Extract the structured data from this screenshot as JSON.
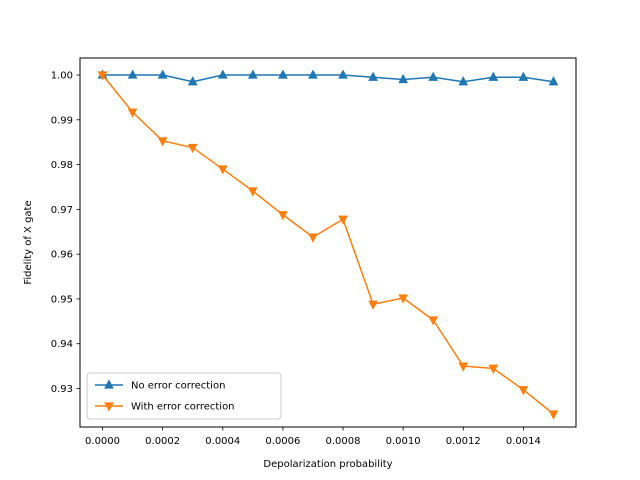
{
  "chart_data": {
    "type": "line",
    "title": "",
    "xlabel": "Depolarization probability",
    "ylabel": "Fidelity of X gate",
    "xlim": [
      -7.5e-05,
      0.001575
    ],
    "ylim": [
      0.9214,
      1.0038
    ],
    "xticks": [
      {
        "value": 0.0,
        "label": "0.0000"
      },
      {
        "value": 0.0002,
        "label": "0.0002"
      },
      {
        "value": 0.0004,
        "label": "0.0004"
      },
      {
        "value": 0.0006,
        "label": "0.0006"
      },
      {
        "value": 0.0008,
        "label": "0.0008"
      },
      {
        "value": 0.001,
        "label": "0.0010"
      },
      {
        "value": 0.0012,
        "label": "0.0012"
      },
      {
        "value": 0.0014,
        "label": "0.0014"
      }
    ],
    "yticks": [
      {
        "value": 0.93,
        "label": "0.93"
      },
      {
        "value": 0.94,
        "label": "0.94"
      },
      {
        "value": 0.95,
        "label": "0.95"
      },
      {
        "value": 0.96,
        "label": "0.96"
      },
      {
        "value": 0.97,
        "label": "0.97"
      },
      {
        "value": 0.98,
        "label": "0.98"
      },
      {
        "value": 0.99,
        "label": "0.99"
      },
      {
        "value": 1.0,
        "label": "1.00"
      }
    ],
    "grid": false,
    "legend_position": "lower-left",
    "x": [
      0.0,
      0.0001,
      0.0002,
      0.0003,
      0.0004,
      0.0005,
      0.0006,
      0.0007,
      0.0008,
      0.0009,
      0.001,
      0.0011,
      0.0012,
      0.0013,
      0.0014,
      0.0015
    ],
    "series": [
      {
        "name": "No error correction",
        "color": "#1f77b4",
        "marker": "triangle-up",
        "values": [
          1.0,
          1.0,
          1.0,
          0.9985,
          1.0,
          1.0,
          1.0,
          1.0,
          1.0,
          0.9995,
          0.999,
          0.9995,
          0.9985,
          0.9995,
          0.9995,
          0.9985
        ]
      },
      {
        "name": "With error correction",
        "color": "#ff7f0e",
        "marker": "triangle-down",
        "values": [
          1.0,
          0.9917,
          0.9853,
          0.9838,
          0.979,
          0.9741,
          0.9688,
          0.9638,
          0.9678,
          0.9488,
          0.9502,
          0.9453,
          0.935,
          0.9345,
          0.9297,
          0.9243
        ]
      }
    ]
  }
}
